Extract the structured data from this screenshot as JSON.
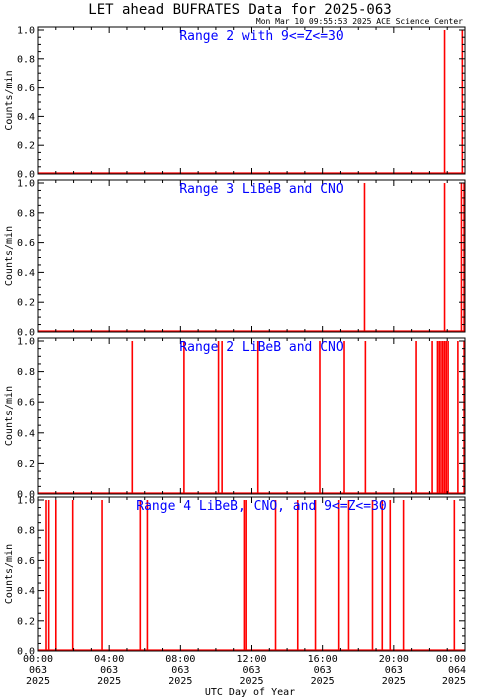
{
  "header": {
    "title": "LET ahead BUFRATES Data for 2025-063",
    "timestamp": "Mon Mar 10 09:55:53 2025 ACE Science Center"
  },
  "x_axis": {
    "label": "UTC Day of Year",
    "ticks": [
      {
        "time": "00:00",
        "doy": "063",
        "year": "2025",
        "hour": 0
      },
      {
        "time": "04:00",
        "doy": "063",
        "year": "2025",
        "hour": 4
      },
      {
        "time": "08:00",
        "doy": "063",
        "year": "2025",
        "hour": 8
      },
      {
        "time": "12:00",
        "doy": "063",
        "year": "2025",
        "hour": 12
      },
      {
        "time": "16:00",
        "doy": "063",
        "year": "2025",
        "hour": 16
      },
      {
        "time": "20:00",
        "doy": "063",
        "year": "2025",
        "hour": 20
      },
      {
        "time": "00:00",
        "doy": "064",
        "year": "2025",
        "hour": 24
      }
    ]
  },
  "colors": {
    "trace": "#ff0000",
    "title": "#0000ff",
    "axes": "#000000"
  },
  "chart_data": [
    {
      "type": "line",
      "title": "Range 2 with 9<=Z<=30",
      "ylabel": "Counts/min",
      "xlim": [
        0,
        24
      ],
      "ylim": [
        0,
        1.0
      ],
      "yticks": [
        "0.0",
        "0.2",
        "0.4",
        "0.6",
        "0.8",
        "1.0"
      ],
      "spikes_hours": [
        22.85,
        23.85
      ]
    },
    {
      "type": "line",
      "title": "Range 3 LiBeB and CNO",
      "ylabel": "Counts/min",
      "xlim": [
        0,
        24
      ],
      "ylim": [
        0,
        1.0
      ],
      "yticks": [
        "0.0",
        "0.2",
        "0.4",
        "0.6",
        "0.8",
        "1.0"
      ],
      "spikes_hours": [
        18.35,
        22.85,
        23.8,
        23.95
      ]
    },
    {
      "type": "line",
      "title": "Range 2 LiBeB and CNO",
      "ylabel": "Counts/min",
      "xlim": [
        0,
        24
      ],
      "ylim": [
        0,
        1.0
      ],
      "yticks": [
        "0.0",
        "0.2",
        "0.4",
        "0.6",
        "0.8",
        "1.0"
      ],
      "spikes_hours": [
        5.3,
        8.2,
        10.15,
        10.35,
        12.35,
        15.85,
        17.2,
        18.4,
        21.25,
        22.15,
        22.45,
        22.55,
        22.65,
        22.75,
        22.85,
        22.95,
        23.05,
        23.6,
        23.95
      ]
    },
    {
      "type": "line",
      "title": "Range 4 LiBeB, CNO, and 9<=Z<=30",
      "ylabel": "Counts/min",
      "xlim": [
        0,
        24
      ],
      "ylim": [
        0,
        1.0
      ],
      "yticks": [
        "0.0",
        "0.2",
        "0.4",
        "0.6",
        "0.8",
        "1.0"
      ],
      "spikes_hours": [
        0.45,
        0.6,
        1.0,
        1.95,
        3.6,
        5.75,
        6.15,
        11.6,
        11.7,
        13.35,
        14.6,
        15.6,
        16.9,
        17.45,
        18.8,
        19.35,
        19.8,
        20.55,
        23.4
      ]
    }
  ]
}
